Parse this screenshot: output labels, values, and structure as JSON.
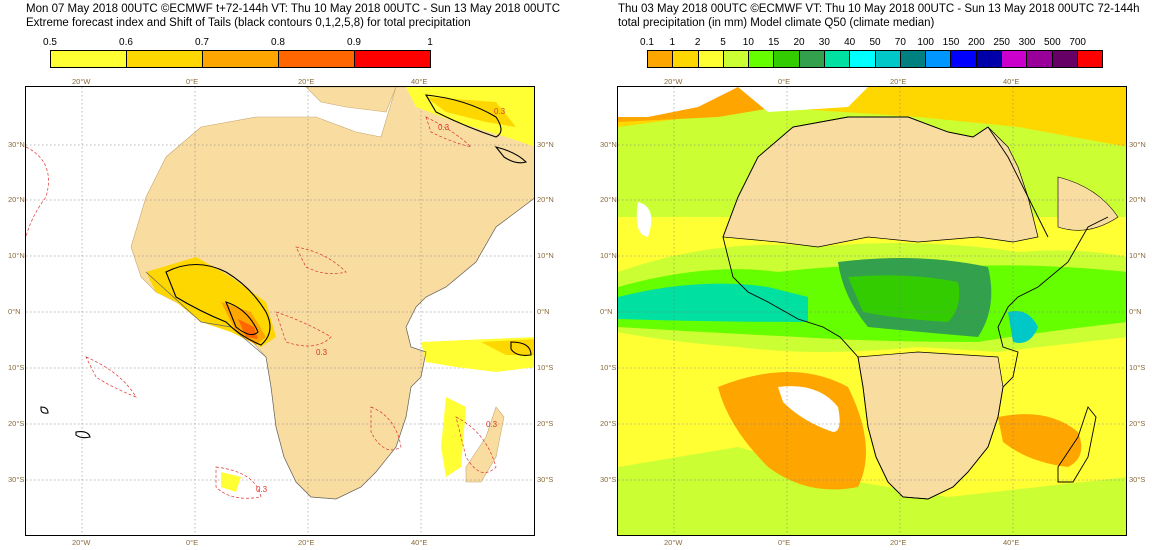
{
  "left": {
    "header1": "Mon 07 May 2018 00UTC ©ECMWF t+72-144h  VT: Thu 10 May 2018 00UTC - Sun 13 May 2018 00UTC",
    "header2": "Extreme forecast index and Shift of Tails (black contours 0,1,2,5,8) for total precipitation",
    "colorbar": {
      "ticks": [
        "0.5",
        "0.6",
        "0.7",
        "0.8",
        "0.9",
        "1"
      ],
      "colors": [
        "#ffff33",
        "#ffd700",
        "#ffa500",
        "#ff6600",
        "#ff0000"
      ]
    },
    "contour_labels": [
      "0.3",
      "0.3",
      "0.3",
      "0.3",
      "0.3"
    ],
    "land_color": "#f8dca0"
  },
  "right": {
    "header1": "Thu 03 May 2018 00UTC ©ECMWF VT: Thu 10 May 2018 00UTC - Sun 13 May 2018 00UTC   72-144h",
    "header2": "total precipitation (in mm)  Model climate Q50 (climate median)",
    "colorbar": {
      "ticks": [
        "0.1",
        "1",
        "2",
        "5",
        "10",
        "15",
        "20",
        "30",
        "40",
        "50",
        "70",
        "100",
        "150",
        "200",
        "250",
        "300",
        "500",
        "700"
      ],
      "colors": [
        "#ffa500",
        "#ffd700",
        "#ffff33",
        "#ccff33",
        "#66ff00",
        "#33cc00",
        "#33a04d",
        "#00e0a0",
        "#00ffff",
        "#00c8c8",
        "#008080",
        "#0096ff",
        "#0000ff",
        "#0000aa",
        "#cc00cc",
        "#990099",
        "#660066",
        "#ff0000"
      ]
    },
    "land_color": "#f8dca0"
  },
  "axes": {
    "lon_labels": [
      "20°W",
      "0°E",
      "20°E",
      "40°E"
    ],
    "lat_labels": [
      "30°N",
      "20°N",
      "10°N",
      "0°N",
      "10°S",
      "20°S",
      "30°S"
    ]
  }
}
